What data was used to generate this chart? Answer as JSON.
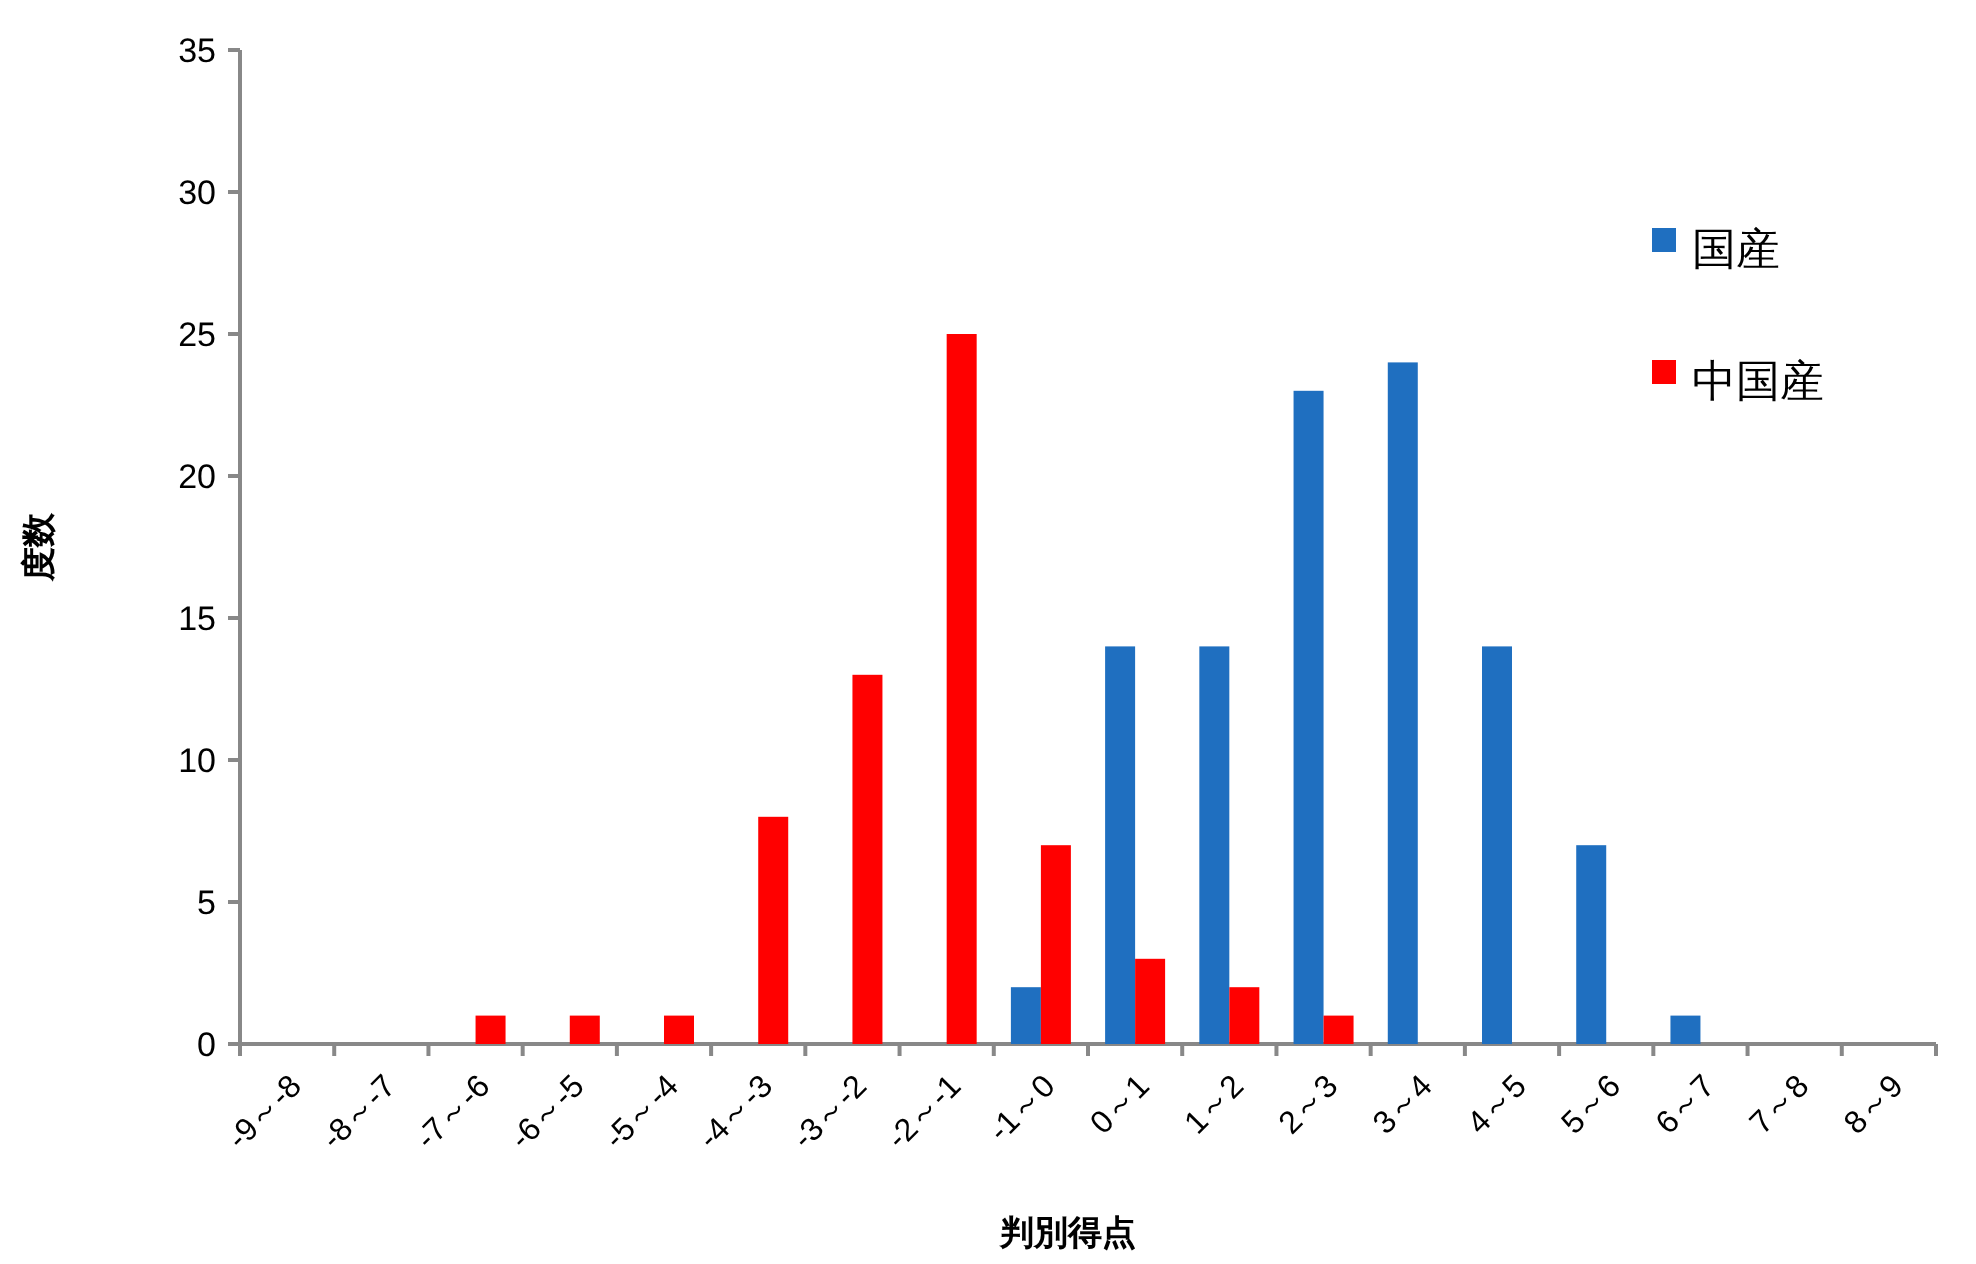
{
  "chart_data": {
    "type": "bar",
    "xlabel": "判別得点",
    "ylabel": "度数",
    "categories": [
      "-9～-8",
      "-8～-7",
      "-7～-6",
      "-6～-5",
      "-5～-4",
      "-4～-3",
      "-3～-2",
      "-2～-1",
      "-1～0",
      "0～1",
      "1～2",
      "2～3",
      "3～4",
      "4～5",
      "5～6",
      "6～7",
      "7～8",
      "8～9"
    ],
    "series": [
      {
        "name": "国産",
        "color": "#1f6fc0",
        "values": [
          0,
          0,
          0,
          0,
          0,
          0,
          0,
          0,
          2,
          14,
          14,
          23,
          24,
          14,
          7,
          1,
          0,
          0
        ]
      },
      {
        "name": "中国産",
        "color": "#ff0000",
        "values": [
          0,
          0,
          1,
          1,
          1,
          8,
          13,
          25,
          7,
          3,
          2,
          1,
          0,
          0,
          0,
          0,
          0,
          0
        ]
      }
    ],
    "ylim": [
      0,
      35
    ],
    "yticks": [
      0,
      5,
      10,
      15,
      20,
      25,
      30,
      35
    ],
    "grid": false,
    "legend": "top right"
  }
}
